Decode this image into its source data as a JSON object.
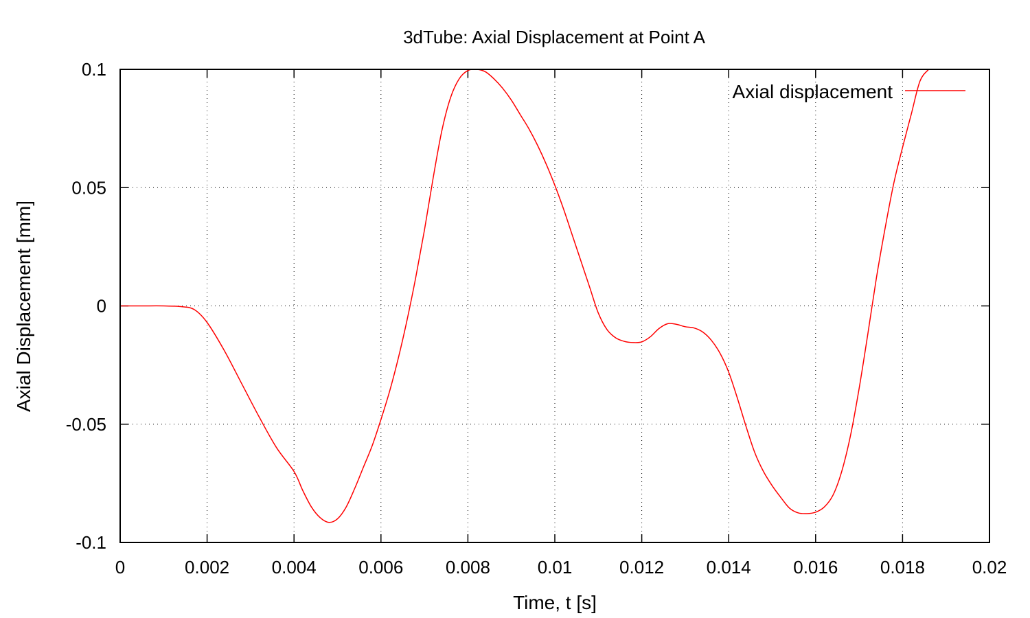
{
  "chart_data": {
    "type": "line",
    "title": "3dTube: Axial Displacement at Point A",
    "xlabel": "Time, t [s]",
    "ylabel": "Axial Displacement [mm]",
    "xlim": [
      0,
      0.02
    ],
    "ylim": [
      -0.1,
      0.1
    ],
    "x_ticks": [
      0,
      0.002,
      0.004,
      0.006,
      0.008,
      0.01,
      0.012,
      0.014,
      0.016,
      0.018,
      0.02
    ],
    "x_tick_labels": [
      "0",
      "0.002",
      "0.004",
      "0.006",
      "0.008",
      "0.01",
      "0.012",
      "0.014",
      "0.016",
      "0.018",
      "0.02"
    ],
    "y_ticks": [
      -0.1,
      -0.05,
      0,
      0.05,
      0.1
    ],
    "y_tick_labels": [
      "-0.1",
      "-0.05",
      "0",
      "0.05",
      "0.1"
    ],
    "grid": true,
    "legend_position": "top-right",
    "series": [
      {
        "name": "Axial displacement",
        "color": "#ff0000",
        "x": [
          0,
          0.0005,
          0.001,
          0.0014,
          0.0017,
          0.002,
          0.0024,
          0.0028,
          0.0032,
          0.0036,
          0.004,
          0.0042,
          0.0044,
          0.0046,
          0.0048,
          0.005,
          0.0052,
          0.0054,
          0.0056,
          0.0058,
          0.006,
          0.0062,
          0.0064,
          0.0066,
          0.0068,
          0.007,
          0.0072,
          0.0074,
          0.0076,
          0.0078,
          0.008,
          0.0082,
          0.0084,
          0.0086,
          0.0088,
          0.009,
          0.0092,
          0.0094,
          0.0096,
          0.0098,
          0.01,
          0.0102,
          0.0104,
          0.0106,
          0.0108,
          0.011,
          0.0112,
          0.0114,
          0.0116,
          0.0118,
          0.012,
          0.0122,
          0.0124,
          0.0126,
          0.0128,
          0.013,
          0.0132,
          0.0134,
          0.0136,
          0.0138,
          0.014,
          0.0142,
          0.0144,
          0.0146,
          0.0148,
          0.015,
          0.0152,
          0.0154,
          0.0156,
          0.0158,
          0.016,
          0.0162,
          0.0164,
          0.0166,
          0.0168,
          0.017,
          0.0172,
          0.0174,
          0.0176,
          0.0178,
          0.018,
          0.0182,
          0.0184,
          0.0186
        ],
        "values": [
          0,
          0,
          0,
          -0.0003,
          -0.0015,
          -0.007,
          -0.019,
          -0.033,
          -0.047,
          -0.06,
          -0.07,
          -0.078,
          -0.085,
          -0.0895,
          -0.0915,
          -0.09,
          -0.085,
          -0.077,
          -0.068,
          -0.059,
          -0.048,
          -0.036,
          -0.022,
          -0.006,
          0.012,
          0.032,
          0.054,
          0.074,
          0.088,
          0.096,
          0.0995,
          0.1,
          0.099,
          0.096,
          0.092,
          0.087,
          0.081,
          0.075,
          0.068,
          0.06,
          0.051,
          0.041,
          0.03,
          0.019,
          0.008,
          -0.003,
          -0.01,
          -0.0135,
          -0.015,
          -0.0155,
          -0.0152,
          -0.013,
          -0.0095,
          -0.0075,
          -0.0078,
          -0.0088,
          -0.0093,
          -0.011,
          -0.0145,
          -0.02,
          -0.028,
          -0.039,
          -0.051,
          -0.062,
          -0.07,
          -0.076,
          -0.081,
          -0.0855,
          -0.0875,
          -0.0878,
          -0.0872,
          -0.085,
          -0.08,
          -0.07,
          -0.055,
          -0.035,
          -0.012,
          0.012,
          0.033,
          0.052,
          0.067,
          0.081,
          0.095,
          0.1
        ]
      }
    ]
  }
}
